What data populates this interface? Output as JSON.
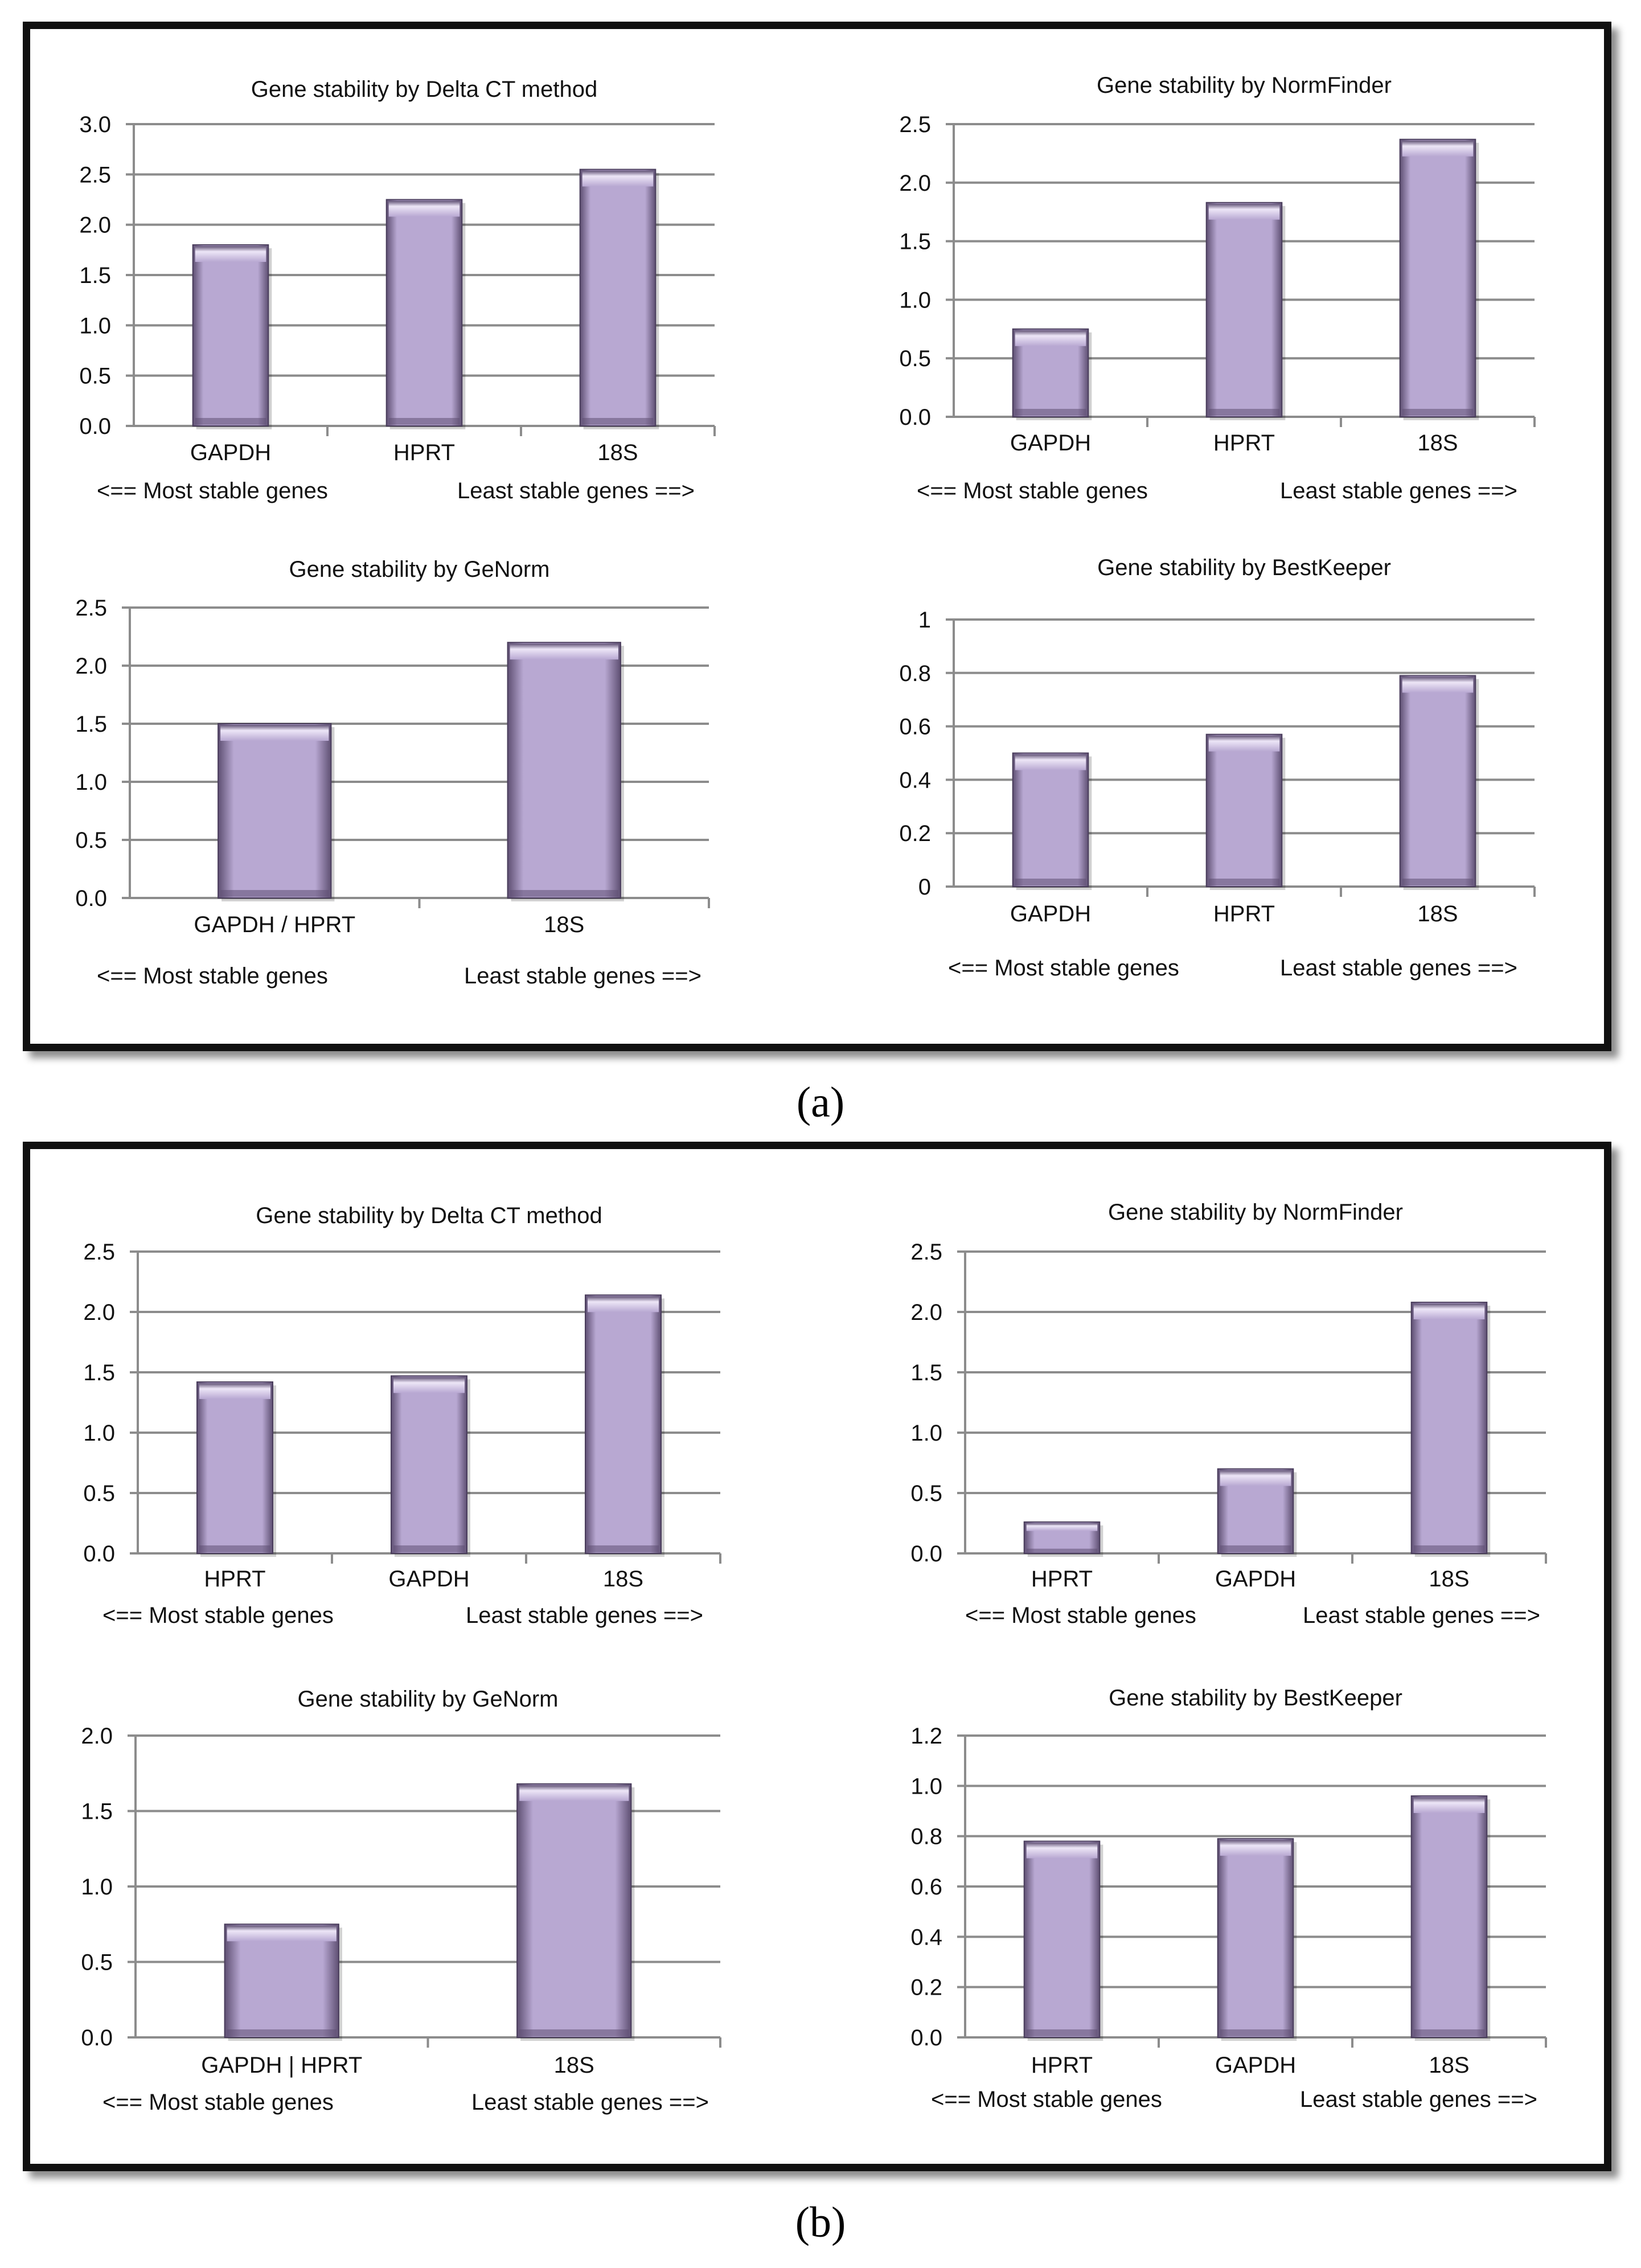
{
  "colors": {
    "bar": "#b8a8d2",
    "bar_dark": "#5e4f72",
    "bar_light": "#ede6f7",
    "grid": "#8c8c8c"
  },
  "panels": [
    {
      "label": "a",
      "caption": "(a)"
    },
    {
      "label": "b",
      "caption": "(b)"
    }
  ],
  "chart_data": [
    {
      "panel": "a",
      "type": "bar",
      "title": "Gene stability by Delta CT method",
      "categories": [
        "GAPDH",
        "HPRT",
        "18S"
      ],
      "values": [
        1.8,
        2.25,
        2.55
      ],
      "ylim": [
        0,
        3.0
      ],
      "yticks": [
        "0.0",
        "0.5",
        "1.0",
        "1.5",
        "2.0",
        "2.5",
        "3.0"
      ],
      "xlabel": "",
      "ylabel": "",
      "note_left": "<== Most stable genes",
      "note_right": "Least stable genes ==>"
    },
    {
      "panel": "a",
      "type": "bar",
      "title": "Gene stability by NormFinder",
      "categories": [
        "GAPDH",
        "HPRT",
        "18S"
      ],
      "values": [
        0.75,
        1.83,
        2.37
      ],
      "ylim": [
        0,
        2.5
      ],
      "yticks": [
        "0.0",
        "0.5",
        "1.0",
        "1.5",
        "2.0",
        "2.5"
      ],
      "xlabel": "",
      "ylabel": "",
      "note_left": "<== Most stable genes",
      "note_right": "Least stable genes ==>"
    },
    {
      "panel": "a",
      "type": "bar",
      "title": "Gene stability by GeNorm",
      "categories": [
        "GAPDH / HPRT",
        "18S"
      ],
      "values": [
        1.5,
        2.2
      ],
      "ylim": [
        0,
        2.5
      ],
      "yticks": [
        "0.0",
        "0.5",
        "1.0",
        "1.5",
        "2.0",
        "2.5"
      ],
      "xlabel": "",
      "ylabel": "",
      "note_left": "<== Most stable genes",
      "note_right": "Least stable genes ==>"
    },
    {
      "panel": "a",
      "type": "bar",
      "title": "Gene stability by  BestKeeper",
      "categories": [
        "GAPDH",
        "HPRT",
        "18S"
      ],
      "values": [
        0.5,
        0.57,
        0.79
      ],
      "ylim": [
        0,
        1
      ],
      "yticks": [
        "0",
        "0.2",
        "0.4",
        "0.6",
        "0.8",
        "1"
      ],
      "xlabel": "",
      "ylabel": "",
      "note_left": "<== Most stable genes",
      "note_right": "Least stable genes ==>"
    },
    {
      "panel": "b",
      "type": "bar",
      "title": "Gene stability by Delta CT method",
      "categories": [
        "HPRT",
        "GAPDH",
        "18S"
      ],
      "values": [
        1.42,
        1.47,
        2.14
      ],
      "ylim": [
        0,
        2.5
      ],
      "yticks": [
        "0.0",
        "0.5",
        "1.0",
        "1.5",
        "2.0",
        "2.5"
      ],
      "xlabel": "",
      "ylabel": "",
      "note_left": "<== Most stable genes",
      "note_right": "Least stable genes ==>"
    },
    {
      "panel": "b",
      "type": "bar",
      "title": "Gene stability by NormFinder",
      "categories": [
        "HPRT",
        "GAPDH",
        "18S"
      ],
      "values": [
        0.26,
        0.7,
        2.08
      ],
      "ylim": [
        0,
        2.5
      ],
      "yticks": [
        "0.0",
        "0.5",
        "1.0",
        "1.5",
        "2.0",
        "2.5"
      ],
      "xlabel": "",
      "ylabel": "",
      "note_left": "<== Most stable genes",
      "note_right": "Least stable genes ==>"
    },
    {
      "panel": "b",
      "type": "bar",
      "title": "Gene stability by GeNorm",
      "categories": [
        "GAPDH | HPRT",
        "18S"
      ],
      "values": [
        0.75,
        1.68
      ],
      "ylim": [
        0,
        2.0
      ],
      "yticks": [
        "0.0",
        "0.5",
        "1.0",
        "1.5",
        "2.0"
      ],
      "xlabel": "",
      "ylabel": "",
      "note_left": "<== Most stable genes",
      "note_right": "Least stable genes ==>"
    },
    {
      "panel": "b",
      "type": "bar",
      "title": "Gene stability by BestKeeper",
      "categories": [
        "HPRT",
        "GAPDH",
        "18S"
      ],
      "values": [
        0.78,
        0.79,
        0.96
      ],
      "ylim": [
        0,
        1.2
      ],
      "yticks": [
        "0.0",
        "0.2",
        "0.4",
        "0.6",
        "0.8",
        "1.0",
        "1.2"
      ],
      "xlabel": "",
      "ylabel": "",
      "note_left": "<== Most stable genes",
      "note_right": "Least stable genes ==>"
    }
  ]
}
